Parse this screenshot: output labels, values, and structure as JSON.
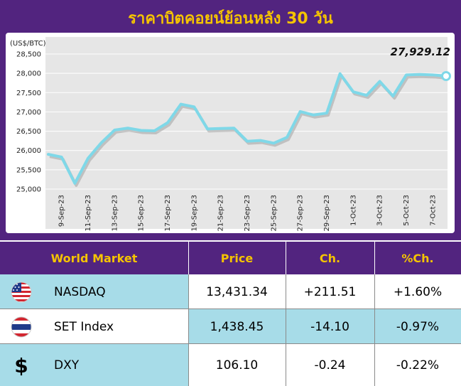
{
  "title": "ราคาบิตคอยน์ย้อนหลัง 30 วัน",
  "colors": {
    "panel": "#52247f",
    "title": "#f5c400",
    "line": "#7fd8e8",
    "plot_bg": "#e6e6e6",
    "row_blue": "#a7dce8",
    "row_white": "#ffffff"
  },
  "chart_data": {
    "type": "line",
    "ylabel": "(US$/BTC)",
    "ylim": [
      25000,
      28500
    ],
    "yticks": [
      "25,000",
      "25,500",
      "26,000",
      "26,500",
      "27,000",
      "27,500",
      "28,000",
      "28,500"
    ],
    "ytick_values": [
      25000,
      25500,
      26000,
      26500,
      27000,
      27500,
      28000,
      28500
    ],
    "x": [
      "8-Sep-23",
      "9-Sep-23",
      "10-Sep-23",
      "11-Sep-23",
      "12-Sep-23",
      "13-Sep-23",
      "14-Sep-23",
      "15-Sep-23",
      "16-Sep-23",
      "17-Sep-23",
      "18-Sep-23",
      "19-Sep-23",
      "20-Sep-23",
      "21-Sep-23",
      "22-Sep-23",
      "23-Sep-23",
      "24-Sep-23",
      "25-Sep-23",
      "26-Sep-23",
      "27-Sep-23",
      "28-Sep-23",
      "29-Sep-23",
      "30-Sep-23",
      "1-Oct-23",
      "2-Oct-23",
      "3-Oct-23",
      "4-Oct-23",
      "5-Oct-23",
      "6-Oct-23",
      "7-Oct-23",
      "8-Oct-23"
    ],
    "xtick_labels": [
      "9-Sep-23",
      "11-Sep-23",
      "13-Sep-23",
      "15-Sep-23",
      "17-Sep-23",
      "19-Sep-23",
      "21-Sep-23",
      "23-Sep-23",
      "25-Sep-23",
      "27-Sep-23",
      "29-Sep-23",
      "1-Oct-23",
      "3-Oct-23",
      "5-Oct-23",
      "7-Oct-23"
    ],
    "values": [
      25900,
      25830,
      25150,
      25800,
      26200,
      26530,
      26580,
      26520,
      26510,
      26720,
      27200,
      27130,
      26560,
      26570,
      26580,
      26240,
      26260,
      26190,
      26340,
      27010,
      26920,
      26970,
      27990,
      27520,
      27430,
      27790,
      27410,
      27960,
      27970,
      27960,
      27929.12
    ],
    "last_value_label": "27,929.12",
    "grid": "horizontal"
  },
  "table": {
    "headers": [
      "World Market",
      "Price",
      "Ch.",
      "%Ch."
    ],
    "rows": [
      {
        "name": "NASDAQ",
        "price": "13,431.34",
        "ch": "+211.51",
        "pct": "+1.60%",
        "icon": "us-flag-icon"
      },
      {
        "name": "SET Index",
        "price": "1,438.45",
        "ch": "-14.10",
        "pct": "-0.97%",
        "icon": "thai-flag-icon"
      },
      {
        "name": "DXY",
        "price": "106.10",
        "ch": "-0.24",
        "pct": "-0.22%",
        "icon": "dollar-sign-icon"
      }
    ]
  }
}
